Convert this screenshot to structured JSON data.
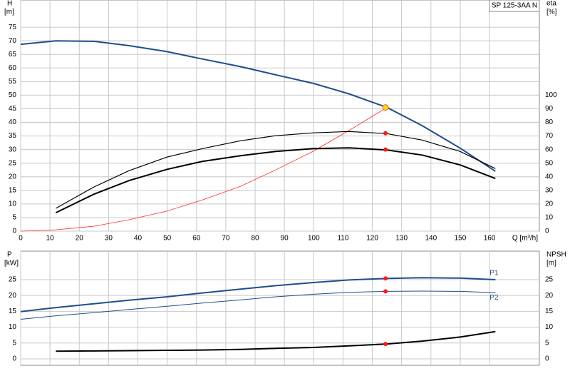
{
  "chart_data": [
    {
      "type": "line",
      "title": "SP 125-3AA N",
      "ylabel": "H",
      "ylabel_unit": "[m]",
      "y2label": "eta",
      "y2label_unit": "[%]",
      "xlabel": "Q [m³/h]",
      "xlim": [
        0,
        177
      ],
      "xticks": [
        0,
        10,
        20,
        30,
        40,
        50,
        60,
        70,
        80,
        90,
        100,
        110,
        120,
        130,
        140,
        150,
        160
      ],
      "ylim": [
        0,
        85
      ],
      "yticks": [
        0,
        5,
        10,
        15,
        20,
        25,
        30,
        35,
        40,
        45,
        50,
        55,
        60,
        65,
        70,
        75
      ],
      "y2lim": [
        0,
        170
      ],
      "y2ticks": [
        0,
        10,
        20,
        30,
        40,
        50,
        60,
        70,
        80,
        90,
        100
      ],
      "grid": true,
      "series": [
        {
          "color": "#1f4e8c",
          "width": 2,
          "x": [
            0,
            12,
            25,
            37,
            50,
            62,
            75,
            87,
            100,
            112,
            125,
            137,
            150,
            162
          ],
          "values": [
            68.7,
            70,
            69.8,
            68.2,
            66,
            63.3,
            60.5,
            57.5,
            54.3,
            50.5,
            45.5,
            38.8,
            30.5,
            22
          ]
        },
        {
          "color": "#ff2a2a",
          "width": 0.8,
          "x": [
            0,
            12,
            25,
            37,
            50,
            62,
            75,
            87,
            100,
            112,
            125
          ],
          "values": [
            0,
            0.5,
            1.8,
            4.2,
            7.4,
            11.5,
            16.5,
            22.5,
            29.5,
            37,
            45.5
          ]
        },
        {
          "color": "#000000",
          "width": 1.2,
          "axis": "y2",
          "x": [
            12,
            25,
            37,
            50,
            62,
            75,
            87,
            100,
            112,
            125,
            137,
            150,
            162
          ],
          "values": [
            16.8,
            32.5,
            44.5,
            54.5,
            60.7,
            66.5,
            70.2,
            72.3,
            73.3,
            71.7,
            67,
            58.6,
            46
          ]
        },
        {
          "color": "#000000",
          "width": 2,
          "axis": "y2",
          "x": [
            12,
            25,
            37,
            50,
            62,
            75,
            87,
            100,
            112,
            125,
            137,
            150,
            162
          ],
          "values": [
            13.6,
            27.2,
            37.2,
            45.5,
            51.3,
            55.5,
            58.6,
            60.7,
            61.3,
            59.7,
            56,
            48.7,
            38.7
          ]
        },
        {
          "color": "#ffd21f",
          "edge": "#e07b00",
          "marker": "dot",
          "x": [
            124.5
          ],
          "values": [
            45.5
          ]
        },
        {
          "color": "#ff1a1a",
          "marker": "dot",
          "axis": "y2",
          "x": [
            124.5,
            124.5
          ],
          "values": [
            72,
            60
          ]
        }
      ]
    },
    {
      "type": "line",
      "ylabel": "P",
      "ylabel_unit": "[kW]",
      "y2label": "NPSH",
      "y2label_unit": "[m]",
      "xlim": [
        0,
        177
      ],
      "xticks": [
        0,
        10,
        20,
        30,
        40,
        50,
        60,
        70,
        80,
        90,
        100,
        110,
        120,
        130,
        140,
        150,
        160
      ],
      "xticklabels": false,
      "ylim": [
        0,
        34
      ],
      "yticks": [
        0,
        5,
        10,
        15,
        20,
        25
      ],
      "y2lim": [
        0,
        34
      ],
      "y2ticks": [
        0,
        5,
        10,
        15,
        20,
        25
      ],
      "grid": true,
      "series": [
        {
          "name": "P1",
          "color": "#1f4e8c",
          "width": 2,
          "x": [
            0,
            12,
            25,
            37,
            50,
            62,
            75,
            87,
            100,
            112,
            125,
            137,
            150,
            162
          ],
          "values": [
            14.9,
            16.2,
            17.4,
            18.5,
            19.6,
            20.8,
            22,
            23.1,
            24.1,
            24.9,
            25.4,
            25.6,
            25.5,
            25
          ]
        },
        {
          "name": "P2",
          "color": "#1f4e8c",
          "width": 1,
          "x": [
            0,
            12,
            25,
            37,
            50,
            62,
            75,
            87,
            100,
            112,
            125,
            137,
            150,
            162
          ],
          "values": [
            12.5,
            13.6,
            14.6,
            15.6,
            16.6,
            17.6,
            18.6,
            19.6,
            20.4,
            21,
            21.3,
            21.4,
            21.3,
            20.9
          ]
        },
        {
          "color": "#000000",
          "width": 2,
          "axis": "y2",
          "x": [
            12,
            25,
            37,
            50,
            62,
            75,
            87,
            100,
            112,
            125,
            137,
            150,
            162
          ],
          "values": [
            2.4,
            2.5,
            2.6,
            2.7,
            2.8,
            3,
            3.3,
            3.6,
            4.1,
            4.7,
            5.6,
            6.9,
            8.6
          ]
        },
        {
          "color": "#ff1a1a",
          "marker": "dot",
          "x": [
            124.5,
            124.5
          ],
          "values": [
            25.4,
            21.3
          ]
        },
        {
          "color": "#ff1a1a",
          "marker": "dot",
          "axis": "y2",
          "x": [
            124.5
          ],
          "values": [
            4.7
          ]
        }
      ]
    }
  ]
}
